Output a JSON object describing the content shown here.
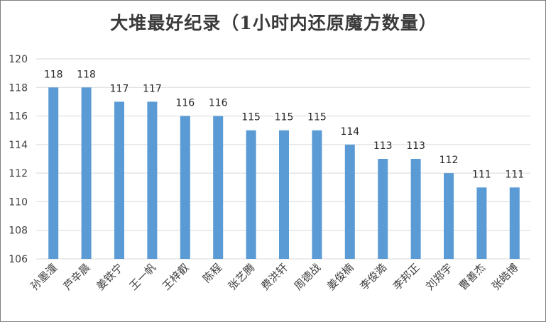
{
  "chart_data": {
    "type": "bar",
    "title": "大堆最好纪录（1小时内还原魔方数量）",
    "xlabel": "",
    "ylabel": "",
    "categories": [
      "孙墨潼",
      "芦辛晨",
      "姜铁宁",
      "王一帆",
      "王梓叡",
      "陈程",
      "张艺腾",
      "费洪轩",
      "周德战",
      "姜俊楠",
      "李俊澔",
      "李邦正",
      "刘郑宇",
      "曹善杰",
      "张皓博"
    ],
    "values": [
      118,
      118,
      117,
      117,
      116,
      116,
      115,
      115,
      115,
      114,
      113,
      113,
      112,
      111,
      111
    ],
    "ylim": [
      106,
      120
    ],
    "yticks": [
      106,
      108,
      110,
      112,
      114,
      116,
      118,
      120
    ],
    "grid": true,
    "legend": "none",
    "bar_color": "#5b9bd5",
    "grid_color": "#d9d9d9"
  }
}
